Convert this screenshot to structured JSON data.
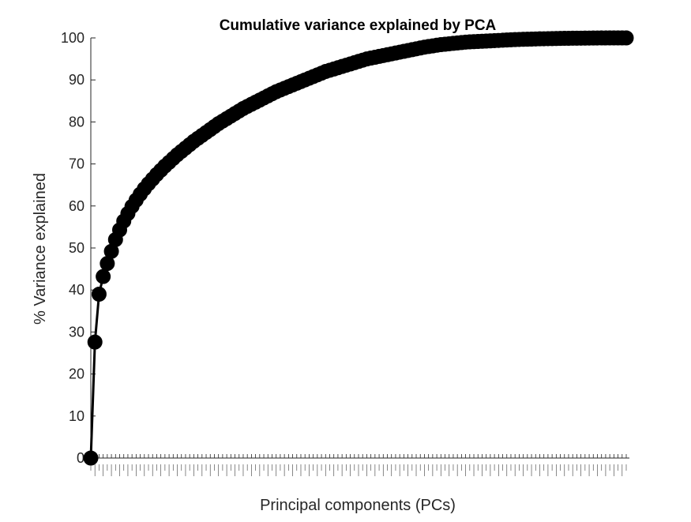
{
  "chart_data": {
    "type": "line",
    "title": "Cumulative variance explained by PCA",
    "xlabel": "Principal components (PCs)",
    "ylabel": "% Variance explained",
    "ylim": [
      0,
      100
    ],
    "yticks": [
      0,
      10,
      20,
      30,
      40,
      50,
      60,
      70,
      80,
      90,
      100
    ],
    "grid": false,
    "legend": "none",
    "line_color": "#000000",
    "marker": "filled-circle",
    "xticklabels_note": "Dense unreadable vertical tick labels; one per principal component.",
    "x": [
      0,
      1,
      2,
      3,
      4,
      5,
      6,
      7,
      8,
      9,
      10,
      11,
      12,
      13,
      14,
      15,
      16,
      17,
      18,
      19,
      20,
      21,
      22,
      23,
      24,
      25,
      26,
      27,
      28,
      29,
      30,
      31,
      32,
      33,
      34,
      35,
      36,
      37,
      38,
      39,
      40,
      41,
      42,
      43,
      44,
      45,
      46,
      47,
      48,
      49,
      50,
      51,
      52,
      53,
      54,
      55,
      56,
      57,
      58,
      59,
      60,
      61,
      62,
      63,
      64,
      65,
      66,
      67,
      68,
      69,
      70,
      71,
      72,
      73,
      74,
      75,
      76,
      77,
      78,
      79,
      80,
      81,
      82,
      83,
      84,
      85,
      86,
      87,
      88,
      89,
      90,
      91,
      92,
      93,
      94,
      95,
      96,
      97,
      98,
      99,
      100,
      101,
      102,
      103,
      104,
      105,
      106,
      107,
      108,
      109,
      110,
      111,
      112,
      113,
      114,
      115,
      116,
      117,
      118,
      119,
      120,
      121,
      122,
      123,
      124,
      125,
      126,
      127,
      128,
      129,
      130
    ],
    "values": [
      0,
      27.6,
      39,
      43.2,
      46.3,
      49.2,
      52,
      54.3,
      56.4,
      58.2,
      59.9,
      61.4,
      62.8,
      64.1,
      65.3,
      66.4,
      67.5,
      68.5,
      69.5,
      70.4,
      71.3,
      72.2,
      73,
      73.8,
      74.6,
      75.4,
      76.1,
      76.8,
      77.5,
      78.2,
      78.9,
      79.6,
      80.2,
      80.8,
      81.4,
      82,
      82.6,
      83.2,
      83.7,
      84.2,
      84.7,
      85.2,
      85.7,
      86.2,
      86.7,
      87.2,
      87.6,
      88,
      88.4,
      88.8,
      89.2,
      89.6,
      90,
      90.4,
      90.8,
      91.2,
      91.6,
      92,
      92.3,
      92.6,
      92.9,
      93.2,
      93.5,
      93.8,
      94.1,
      94.4,
      94.7,
      95,
      95.2,
      95.4,
      95.6,
      95.8,
      96,
      96.2,
      96.4,
      96.6,
      96.8,
      97,
      97.2,
      97.4,
      97.6,
      97.8,
      97.95,
      98.1,
      98.25,
      98.4,
      98.5,
      98.6,
      98.7,
      98.8,
      98.9,
      99,
      99.05,
      99.1,
      99.15,
      99.2,
      99.25,
      99.3,
      99.35,
      99.4,
      99.45,
      99.5,
      99.55,
      99.6,
      99.63,
      99.66,
      99.69,
      99.72,
      99.75,
      99.78,
      99.8,
      99.82,
      99.84,
      99.86,
      99.88,
      99.9,
      99.91,
      99.92,
      99.93,
      99.94,
      99.95,
      99.96,
      99.97,
      99.98,
      99.99,
      99.99,
      99.995,
      99.998,
      99.999,
      100,
      100
    ]
  }
}
